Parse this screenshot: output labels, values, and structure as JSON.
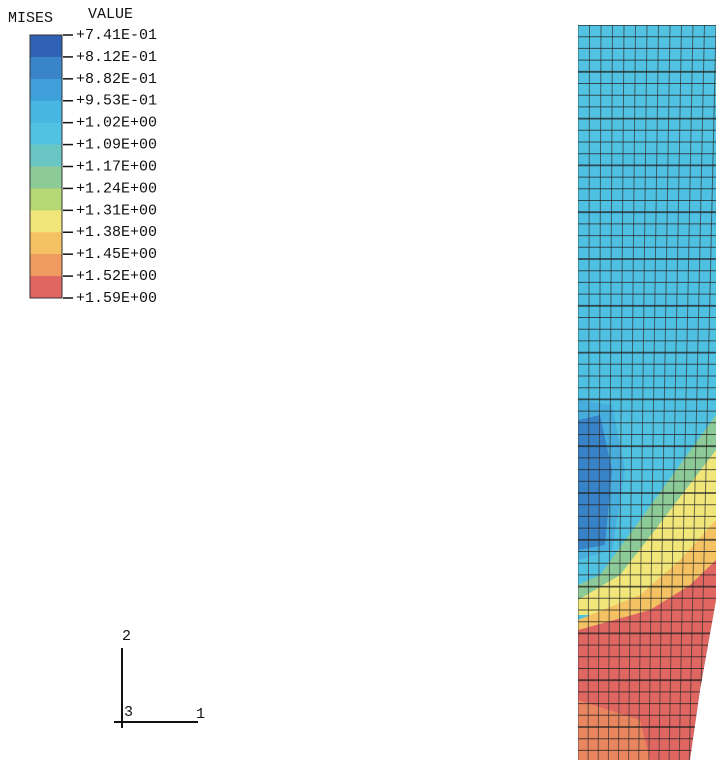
{
  "legend": {
    "title": "MISES",
    "header": "VALUE",
    "labels": [
      "+7.41E-01",
      "+8.12E-01",
      "+8.82E-01",
      "+9.53E-01",
      "+1.02E+00",
      "+1.09E+00",
      "+1.17E+00",
      "+1.24E+00",
      "+1.31E+00",
      "+1.38E+00",
      "+1.45E+00",
      "+1.52E+00",
      "+1.59E+00"
    ],
    "colors": [
      "#2f62b4",
      "#3a84c9",
      "#3f9fd8",
      "#48b6e2",
      "#52c2e2",
      "#6ac6c4",
      "#8ccb98",
      "#b6d874",
      "#f1e67a",
      "#f4c262",
      "#ef9a5e",
      "#e06662"
    ]
  },
  "triad": {
    "axis_2": "2",
    "axis_1": "1",
    "axis_3": "3"
  }
}
